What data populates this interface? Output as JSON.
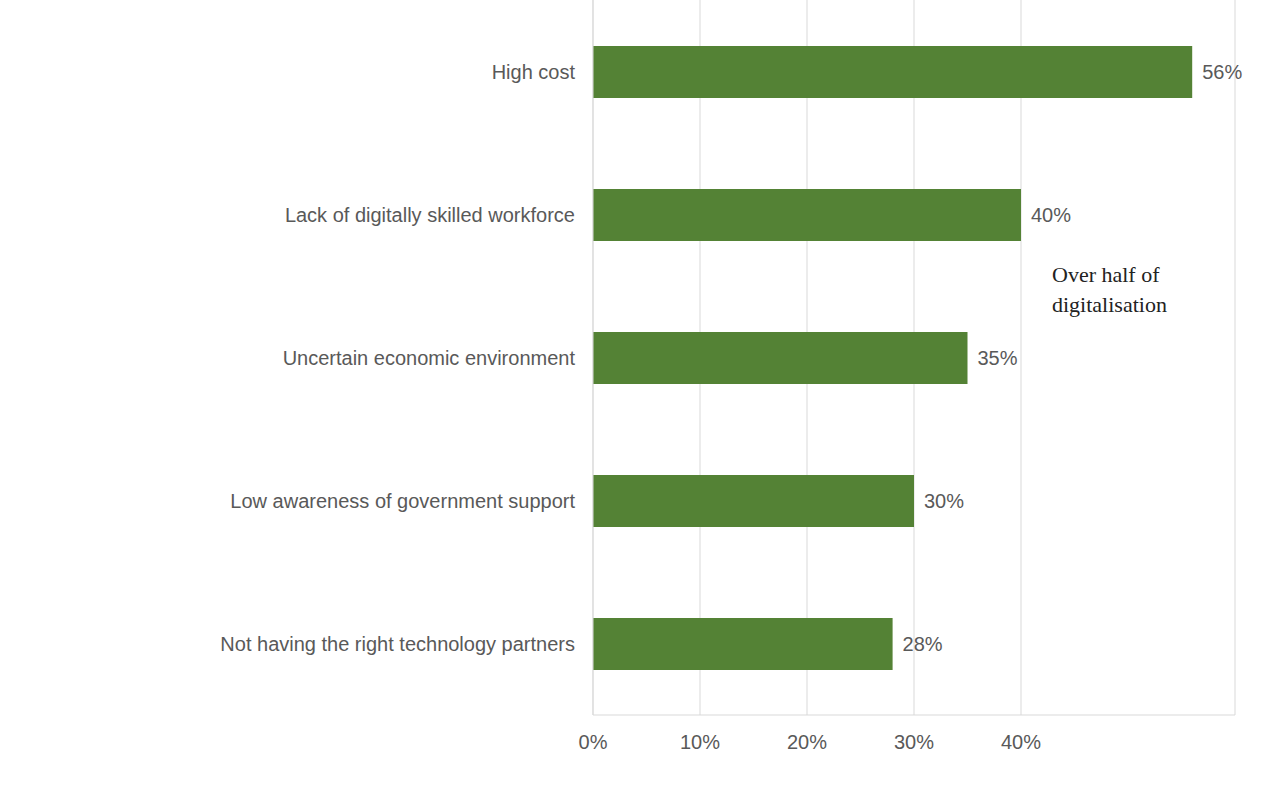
{
  "chart_data": {
    "type": "bar",
    "orientation": "horizontal",
    "categories": [
      "High cost",
      "Lack of digitally skilled workforce",
      "Uncertain economic environment",
      "Low awareness of government support",
      "Not having the right technology partners"
    ],
    "values": [
      56,
      40,
      35,
      30,
      28
    ],
    "value_labels": [
      "56%",
      "40%",
      "35%",
      "30%",
      "28%"
    ],
    "data_labels": true,
    "color": "#548235",
    "xlim": [
      0,
      60
    ],
    "xticks": [
      {
        "value": 0,
        "label": "0%"
      },
      {
        "value": 10,
        "label": "10%"
      },
      {
        "value": 20,
        "label": "20%"
      },
      {
        "value": 30,
        "label": "30%"
      },
      {
        "value": 40,
        "label": "40%"
      }
    ],
    "grid": true,
    "annotations": [
      "Over half of",
      "digitalisation"
    ]
  }
}
